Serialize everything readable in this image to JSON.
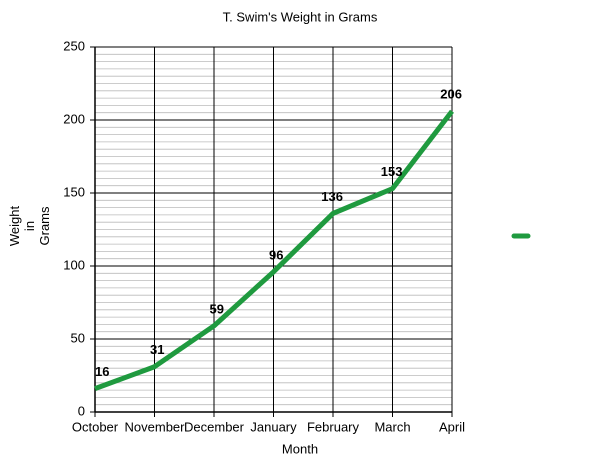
{
  "chart_data": {
    "type": "line",
    "title": "T. Swim's Weight in Grams",
    "xlabel": "Month",
    "ylabel": "Weight in Grams",
    "categories": [
      "October",
      "November",
      "December",
      "January",
      "February",
      "March",
      "April"
    ],
    "series": [
      {
        "color": "#1f9a3f",
        "values": [
          16,
          31,
          59,
          96,
          136,
          153,
          206
        ]
      }
    ],
    "ylim": [
      0,
      250
    ],
    "yticks": [
      0,
      50,
      100,
      150,
      200,
      250
    ],
    "grid": true,
    "legend": "right"
  }
}
